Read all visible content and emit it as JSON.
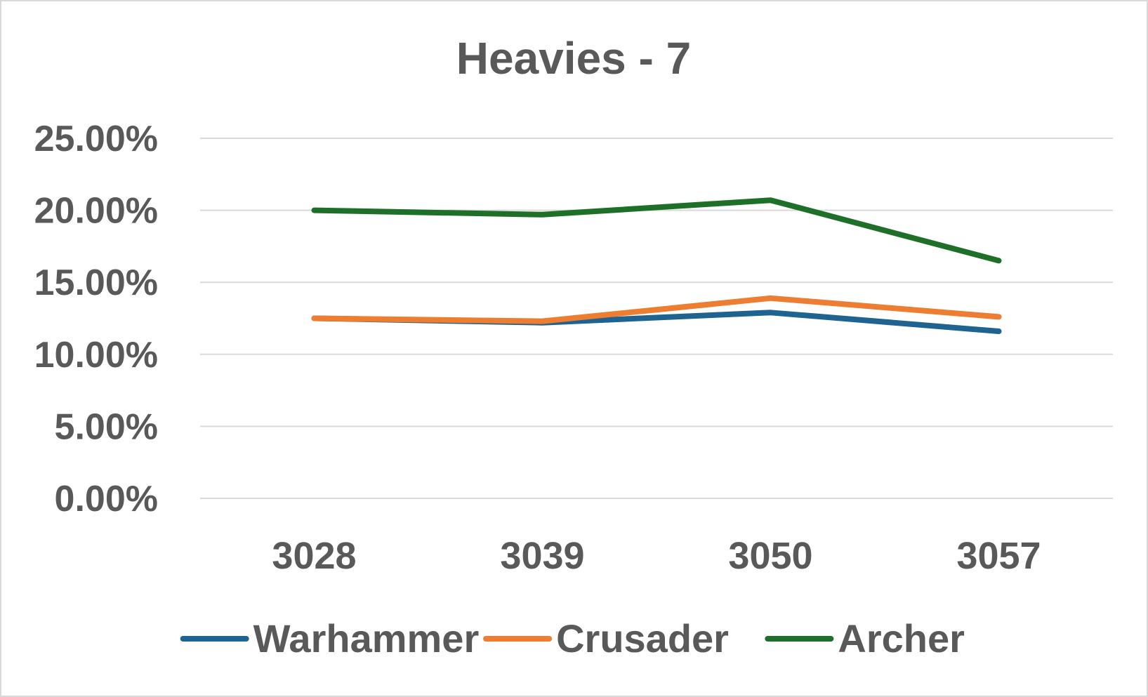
{
  "chart_data": {
    "type": "line",
    "title": "Heavies - 7",
    "xlabel": "",
    "ylabel": "",
    "categories": [
      "3028",
      "3039",
      "3050",
      "3057"
    ],
    "ylim": [
      0,
      0.25
    ],
    "y_ticks": [
      "0.00%",
      "5.00%",
      "10.00%",
      "15.00%",
      "20.00%",
      "25.00%"
    ],
    "grid": true,
    "legend": "bottom",
    "series": [
      {
        "name": "Warhammer",
        "color": "#1f6391",
        "values": [
          0.125,
          0.122,
          0.129,
          0.116
        ]
      },
      {
        "name": "Crusader",
        "color": "#ed7d31",
        "values": [
          0.125,
          0.123,
          0.139,
          0.126
        ]
      },
      {
        "name": "Archer",
        "color": "#1e7029",
        "values": [
          0.2,
          0.197,
          0.207,
          0.165
        ]
      }
    ]
  }
}
